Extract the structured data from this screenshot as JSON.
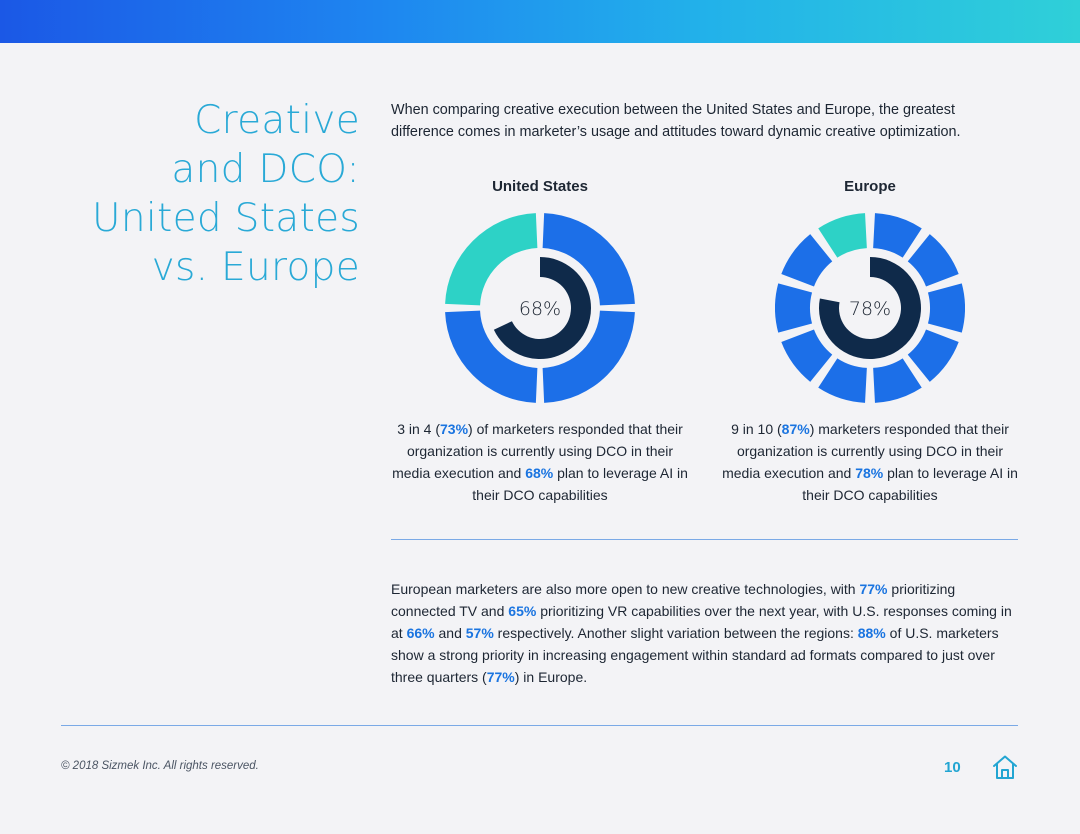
{
  "title_lines": [
    "Creative",
    "and DCO:",
    "United States",
    "vs. Europe"
  ],
  "intro": "When comparing creative execution between the United States and Europe, the greatest difference comes in marketer’s usage and attitudes toward dynamic creative optimization.",
  "colors": {
    "outer_blue": "#1c6fe8",
    "outer_teal": "#2dd2c6",
    "inner_navy": "#0f2a4a",
    "highlight": "#1a74e0",
    "title": "#29a9d6"
  },
  "chart_data": [
    {
      "type": "pie",
      "heading": "United States",
      "outer_ring": {
        "value_percent": 73,
        "segments": 4,
        "label": "3 in 4 (73%)"
      },
      "inner_ring": {
        "value_percent": 68,
        "label": "68%"
      },
      "center_label": "68%"
    },
    {
      "type": "pie",
      "heading": "Europe",
      "outer_ring": {
        "value_percent": 87,
        "segments": 10,
        "label": "9 in 10 (87%)"
      },
      "inner_ring": {
        "value_percent": 78,
        "label": "78%"
      },
      "center_label": "78%"
    }
  ],
  "captions": {
    "us": {
      "p1": "3 in 4 (",
      "h1": "73%",
      "p2": ") of marketers responded that their organization is currently using DCO in their media execution and ",
      "h2": "68%",
      "p3": " plan to leverage AI in their DCO capabilities"
    },
    "eu": {
      "p1": "9 in 10 (",
      "h1": "87%",
      "p2": ") marketers responded that their organization is currently using DCO in their media execution and ",
      "h2": "78%",
      "p3": " plan to leverage AI in their DCO capabilities"
    }
  },
  "body": {
    "t1": "European marketers are also more open to new creative technologies, with ",
    "h1": "77%",
    "t2": " prioritizing connected TV and ",
    "h2": "65%",
    "t3": " prioritizing VR capabilities over the next year, with U.S. responses coming in at ",
    "h3": "66%",
    "t4": " and ",
    "h4": "57%",
    "t5": " respectively. Another slight variation between the regions: ",
    "h5": "88%",
    "t6": " of U.S. marketers show a strong priority in increasing engagement within standard ad formats compared to just over three quarters (",
    "h6": "77%",
    "t7": ") in Europe."
  },
  "footer": {
    "copyright": "© 2018 Sizmek Inc. All rights reserved.",
    "page_number": "10",
    "home_icon": "home-icon"
  }
}
